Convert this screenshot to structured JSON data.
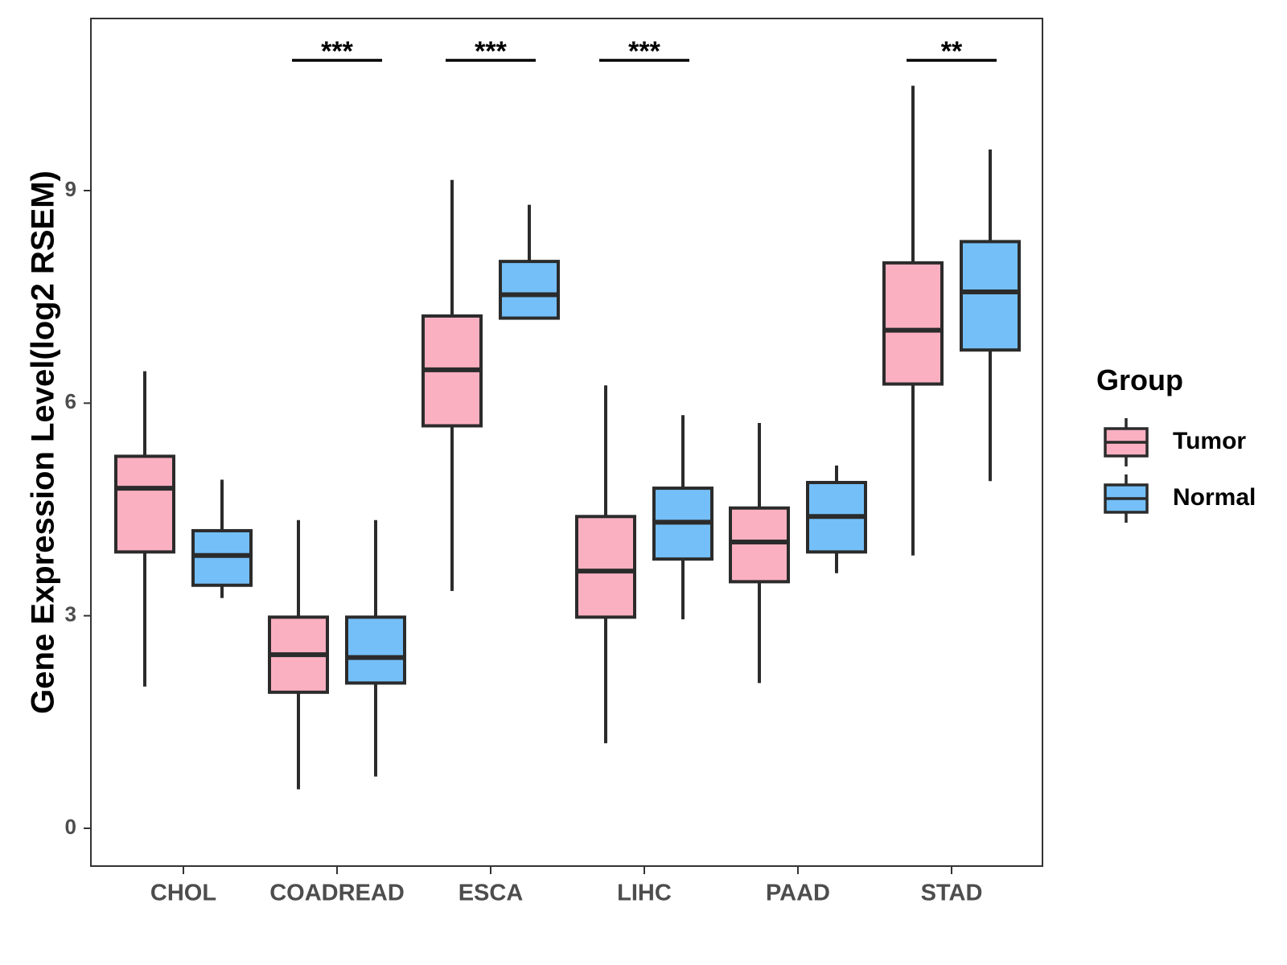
{
  "chart_data": {
    "type": "boxplot",
    "title": "",
    "xlabel": "",
    "ylabel": "Gene Expression Level(log2 RSEM)",
    "ylim": [
      -0.55,
      11.4
    ],
    "yticks": [
      0,
      3,
      6,
      9
    ],
    "grid": false,
    "legend_position": "right",
    "legend_title": "Group",
    "categories": [
      "CHOL",
      "COADREAD",
      "ESCA",
      "LIHC",
      "PAAD",
      "STAD"
    ],
    "series": [
      {
        "name": "Tumor",
        "color": "#FBB0C1",
        "boxes": [
          {
            "min": 2.0,
            "q1": 3.9,
            "median": 4.8,
            "q3": 5.25,
            "max": 6.45
          },
          {
            "min": 0.55,
            "q1": 1.92,
            "median": 2.45,
            "q3": 2.98,
            "max": 4.35
          },
          {
            "min": 3.35,
            "q1": 5.68,
            "median": 6.47,
            "q3": 7.23,
            "max": 9.15
          },
          {
            "min": 1.2,
            "q1": 2.98,
            "median": 3.63,
            "q3": 4.4,
            "max": 6.25
          },
          {
            "min": 2.05,
            "q1": 3.48,
            "median": 4.04,
            "q3": 4.52,
            "max": 5.72
          },
          {
            "min": 3.85,
            "q1": 6.27,
            "median": 7.03,
            "q3": 7.98,
            "max": 10.48
          }
        ]
      },
      {
        "name": "Normal",
        "color": "#74BFF8",
        "boxes": [
          {
            "min": 3.25,
            "q1": 3.43,
            "median": 3.85,
            "q3": 4.2,
            "max": 4.92
          },
          {
            "min": 0.73,
            "q1": 2.05,
            "median": 2.41,
            "q3": 2.98,
            "max": 4.35
          },
          {
            "min": 7.18,
            "q1": 7.2,
            "median": 7.53,
            "q3": 8.0,
            "max": 8.8
          },
          {
            "min": 2.95,
            "q1": 3.8,
            "median": 4.32,
            "q3": 4.8,
            "max": 5.83
          },
          {
            "min": 3.6,
            "q1": 3.9,
            "median": 4.4,
            "q3": 4.88,
            "max": 5.12
          },
          {
            "min": 4.9,
            "q1": 6.75,
            "median": 7.57,
            "q3": 8.28,
            "max": 9.58
          }
        ]
      }
    ],
    "significance": [
      {
        "category": "COADREAD",
        "label": "***"
      },
      {
        "category": "ESCA",
        "label": "***"
      },
      {
        "category": "LIHC",
        "label": "***"
      },
      {
        "category": "STAD",
        "label": "**"
      }
    ]
  }
}
